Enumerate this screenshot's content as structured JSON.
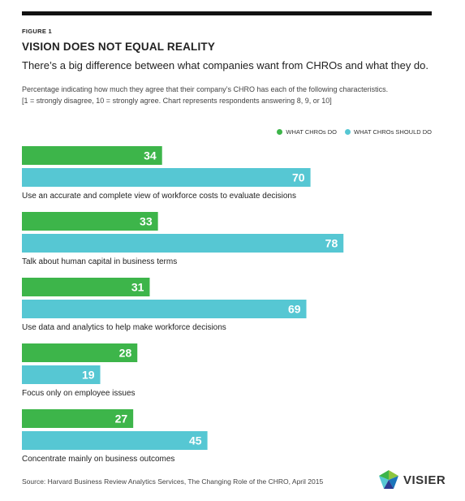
{
  "figure": {
    "label": "FIGURE 1",
    "title": "VISION DOES NOT EQUAL REALITY",
    "subtitle": "There’s a big difference between what companies want from CHROs and what they do.",
    "description_line1": "Percentage indicating how much they agree that their company’s CHRO has each of the following characteristics.",
    "description_line2": "[1 = strongly disagree, 10 = strongly agree. Chart represents respondents answering 8, 9, or 10]",
    "source": "Source: Harvard Business Review Analytics Services, The Changing Role of the CHRO, April 2015"
  },
  "logo": {
    "text": "VISIER"
  },
  "colors": {
    "green": "#3db54a",
    "cyan": "#56c7d3"
  },
  "chart_data": {
    "type": "bar",
    "orientation": "horizontal",
    "categories": [
      "Use an accurate and complete view of workforce costs to evaluate decisions",
      "Talk about human capital in business terms",
      "Use data and analytics to help make workforce decisions",
      "Focus only on employee issues",
      "Concentrate mainly on business outcomes"
    ],
    "series": [
      {
        "name": "WHAT CHROs DO",
        "color": "#3db54a",
        "values": [
          34,
          33,
          31,
          28,
          27
        ]
      },
      {
        "name": "WHAT CHROs SHOULD DO",
        "color": "#56c7d3",
        "values": [
          70,
          78,
          69,
          19,
          45
        ]
      }
    ],
    "xlim": [
      0,
      100
    ],
    "legend": "top-right",
    "grid": false
  }
}
